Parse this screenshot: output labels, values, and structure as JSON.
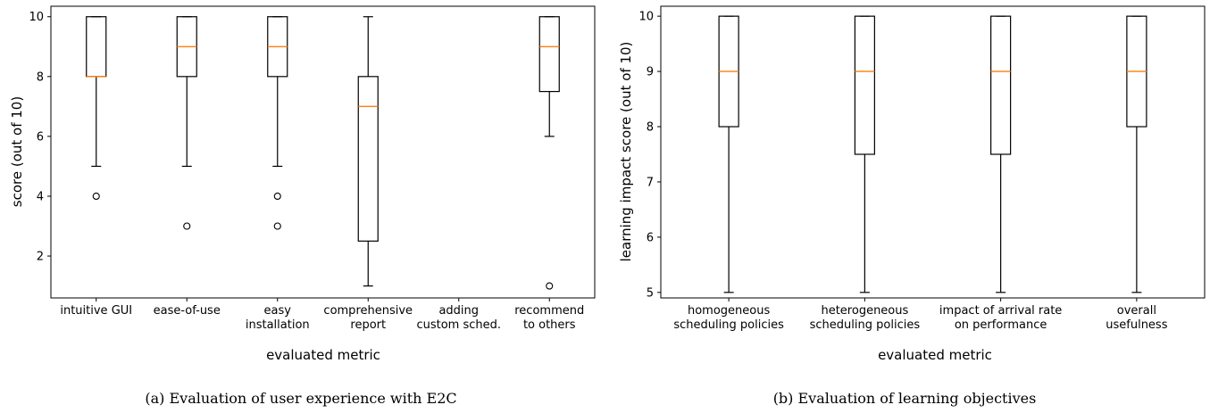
{
  "chart_data": [
    {
      "type": "boxplot",
      "caption": "(a) Evaluation of user experience with E2C",
      "xlabel": "evaluated metric",
      "ylabel": "score (out of 10)",
      "ylim": [
        0.6,
        10.35
      ],
      "yticks": [
        2,
        4,
        6,
        8,
        10
      ],
      "grid": false,
      "categories": [
        [
          "intuitive GUI"
        ],
        [
          "ease-of-use"
        ],
        [
          "easy",
          "installation"
        ],
        [
          "comprehensive",
          "report"
        ],
        [
          "adding",
          "custom sched."
        ],
        [
          "recommend",
          "to others"
        ]
      ],
      "boxes": [
        {
          "whisker_low": 5,
          "q1": 8,
          "median": 8,
          "q3": 10,
          "whisker_high": 10,
          "outliers": [
            4
          ]
        },
        {
          "whisker_low": 5,
          "q1": 8,
          "median": 9,
          "q3": 10,
          "whisker_high": 10,
          "outliers": [
            3
          ]
        },
        {
          "whisker_low": 5,
          "q1": 8,
          "median": 9,
          "q3": 10,
          "whisker_high": 10,
          "outliers": [
            4,
            3
          ]
        },
        {
          "whisker_low": 1,
          "q1": 2.5,
          "median": 7,
          "q3": 8,
          "whisker_high": 10,
          "outliers": []
        },
        null,
        {
          "whisker_low": 6,
          "q1": 7.5,
          "median": 9,
          "q3": 10,
          "whisker_high": 10,
          "outliers": [
            1
          ]
        }
      ]
    },
    {
      "type": "boxplot",
      "caption": "(b) Evaluation of learning objectives",
      "xlabel": "evaluated metric",
      "ylabel": "learning impact score (out of 10)",
      "ylim": [
        4.9,
        10.18
      ],
      "yticks": [
        5,
        6,
        7,
        8,
        9,
        10
      ],
      "grid": false,
      "categories": [
        [
          "homogeneous",
          "scheduling policies"
        ],
        [
          "heterogeneous",
          "scheduling policies"
        ],
        [
          "impact of arrival rate",
          "on performance"
        ],
        [
          "overall",
          "usefulness"
        ]
      ],
      "boxes": [
        {
          "whisker_low": 5,
          "q1": 8,
          "median": 9,
          "q3": 10,
          "whisker_high": 10,
          "outliers": []
        },
        {
          "whisker_low": 5,
          "q1": 7.5,
          "median": 9,
          "q3": 10,
          "whisker_high": 10,
          "outliers": []
        },
        {
          "whisker_low": 5,
          "q1": 7.5,
          "median": 9,
          "q3": 10,
          "whisker_high": 10,
          "outliers": []
        },
        {
          "whisker_low": 5,
          "q1": 8,
          "median": 9,
          "q3": 10,
          "whisker_high": 10,
          "outliers": []
        }
      ]
    }
  ],
  "colors": {
    "median": "#ff7f0e",
    "box": "#000000"
  }
}
